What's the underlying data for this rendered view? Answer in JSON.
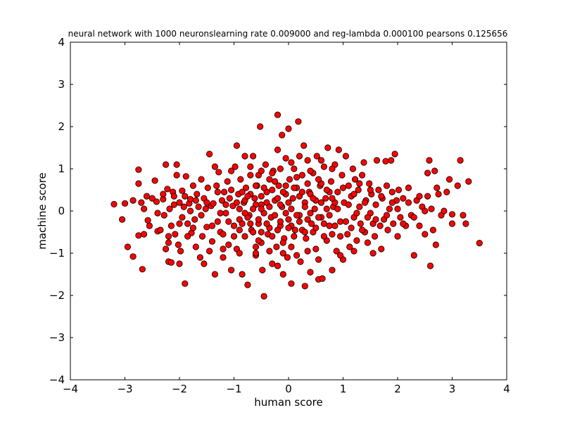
{
  "chart_data": {
    "type": "scatter",
    "title": "neural network with 1000 neuronslearning rate 0.009000 and reg-lambda 0.000100 pearsons 0.125656",
    "xlabel": "human score",
    "ylabel": "machine score",
    "xlim": [
      -4,
      4
    ],
    "ylim": [
      -4,
      4
    ],
    "x_ticks": [
      -4,
      -3,
      -2,
      -1,
      0,
      1,
      2,
      3,
      4
    ],
    "y_ticks": [
      -4,
      -3,
      -2,
      -1,
      0,
      1,
      2,
      3,
      4
    ],
    "x_tick_labels": [
      "−4",
      "−3",
      "−2",
      "−1",
      "0",
      "1",
      "2",
      "3",
      "4"
    ],
    "y_tick_labels": [
      "−4",
      "−3",
      "−2",
      "−1",
      "0",
      "1",
      "2",
      "3",
      "4"
    ],
    "grid": false,
    "marker_color": "#ff0000",
    "marker_edge_color": "#000000",
    "points": [
      [
        -3.2,
        0.16
      ],
      [
        -3.05,
        -0.2
      ],
      [
        -3.0,
        0.18
      ],
      [
        -2.95,
        -0.85
      ],
      [
        -2.85,
        0.25
      ],
      [
        -2.85,
        -1.08
      ],
      [
        -2.75,
        0.98
      ],
      [
        -2.75,
        0.65
      ],
      [
        -2.75,
        -0.58
      ],
      [
        -2.7,
        0.2
      ],
      [
        -2.68,
        -1.38
      ],
      [
        -2.65,
        0.05
      ],
      [
        -2.65,
        -0.55
      ],
      [
        -2.6,
        0.35
      ],
      [
        -2.58,
        -0.22
      ],
      [
        -2.55,
        -0.35
      ],
      [
        -2.5,
        0.3
      ],
      [
        -2.45,
        0.72
      ],
      [
        -2.42,
        0.22
      ],
      [
        -2.4,
        -0.48
      ],
      [
        -2.35,
        -0.45
      ],
      [
        -2.3,
        0.28
      ],
      [
        -2.28,
        -0.1
      ],
      [
        -2.25,
        -0.9
      ],
      [
        -2.25,
        1.1
      ],
      [
        -2.22,
        0.52
      ],
      [
        -2.2,
        -1.2
      ],
      [
        -2.2,
        -0.75
      ],
      [
        -2.18,
        0.05
      ],
      [
        -2.15,
        -0.35
      ],
      [
        -2.15,
        -1.22
      ],
      [
        -2.12,
        0.45
      ],
      [
        -2.1,
        0.35
      ],
      [
        -2.08,
        -0.55
      ],
      [
        -2.05,
        1.1
      ],
      [
        -2.05,
        0.85
      ],
      [
        -2.02,
        -0.8
      ],
      [
        -2.0,
        -1.25
      ],
      [
        -2.0,
        0.2
      ],
      [
        -1.98,
        -0.95
      ],
      [
        -1.95,
        0.48
      ],
      [
        -1.95,
        -0.15
      ],
      [
        -1.92,
        0.1
      ],
      [
        -1.9,
        -1.72
      ],
      [
        -1.88,
        0.82
      ],
      [
        -1.85,
        -0.3
      ],
      [
        -1.82,
        0.18
      ],
      [
        -1.8,
        0.28
      ],
      [
        -1.78,
        -0.52
      ],
      [
        -1.75,
        0.6
      ],
      [
        -1.72,
        -0.2
      ],
      [
        -1.7,
        -0.85
      ],
      [
        -1.68,
        0.4
      ],
      [
        -1.65,
        0.1
      ],
      [
        -1.62,
        -1.1
      ],
      [
        -1.6,
        0.75
      ],
      [
        -1.58,
        -0.6
      ],
      [
        -1.55,
        -1.25
      ],
      [
        -1.55,
        0.3
      ],
      [
        -1.52,
        0.05
      ],
      [
        -1.5,
        -0.38
      ],
      [
        -1.48,
        0.55
      ],
      [
        -1.45,
        -0.95
      ],
      [
        -1.45,
        1.35
      ],
      [
        -1.42,
        0.12
      ],
      [
        -1.4,
        -0.72
      ],
      [
        -1.38,
        0.18
      ],
      [
        -1.35,
        1.05
      ],
      [
        -1.35,
        -1.5
      ],
      [
        -1.32,
        0.6
      ],
      [
        -1.3,
        -0.25
      ],
      [
        -1.28,
        0.92
      ],
      [
        -1.25,
        -0.5
      ],
      [
        -1.22,
        0.25
      ],
      [
        -1.2,
        -1.1
      ],
      [
        -1.18,
        0.45
      ],
      [
        -1.15,
        -0.05
      ],
      [
        -1.12,
        0.7
      ],
      [
        -1.1,
        -0.8
      ],
      [
        -1.08,
        0.3
      ],
      [
        -1.05,
        -1.4
      ],
      [
        -1.05,
        0.95
      ],
      [
        -1.02,
        0.12
      ],
      [
        -1.0,
        -0.35
      ],
      [
        -0.98,
        1.05
      ],
      [
        -0.95,
        1.55
      ],
      [
        -0.95,
        -0.9
      ],
      [
        -0.92,
        0.4
      ],
      [
        -0.9,
        -0.2
      ],
      [
        -0.88,
        0.75
      ],
      [
        -0.85,
        -1.5
      ],
      [
        -0.82,
        0.2
      ],
      [
        -0.8,
        -0.6
      ],
      [
        -0.8,
        1.3
      ],
      [
        -0.78,
        0.55
      ],
      [
        -0.75,
        -1.75
      ],
      [
        -0.72,
        -0.1
      ],
      [
        -0.7,
        0.85
      ],
      [
        -0.68,
        -0.45
      ],
      [
        -0.65,
        1.3
      ],
      [
        -0.62,
        0.3
      ],
      [
        -0.6,
        -1.05
      ],
      [
        -0.58,
        0.6
      ],
      [
        -0.55,
        -0.3
      ],
      [
        -0.52,
        2.0
      ],
      [
        -0.5,
        0.15
      ],
      [
        -0.5,
        -0.75
      ],
      [
        -0.48,
        -1.4
      ],
      [
        -0.45,
        -2.02
      ],
      [
        -0.42,
        1.1
      ],
      [
        -0.4,
        0.45
      ],
      [
        -0.38,
        -0.55
      ],
      [
        -0.35,
        0.75
      ],
      [
        -0.32,
        -0.15
      ],
      [
        -0.3,
        -1.25
      ],
      [
        -0.28,
        0.95
      ],
      [
        -0.25,
        0.25
      ],
      [
        -0.22,
        -0.85
      ],
      [
        -0.2,
        1.45
      ],
      [
        -0.2,
        2.28
      ],
      [
        -0.18,
        0.6
      ],
      [
        -0.15,
        -0.35
      ],
      [
        -0.12,
        1.8
      ],
      [
        -0.12,
        0.1
      ],
      [
        -0.1,
        -1.5
      ],
      [
        -0.08,
        -0.65
      ],
      [
        -0.05,
        1.25
      ],
      [
        -0.05,
        0.4
      ],
      [
        -0.02,
        -1.1
      ],
      [
        0.0,
        1.95
      ],
      [
        0.0,
        -0.2
      ],
      [
        0.02,
        0.75
      ],
      [
        0.05,
        -1.72
      ],
      [
        0.05,
        -0.85
      ],
      [
        0.08,
        0.3
      ],
      [
        0.1,
        1.0
      ],
      [
        0.12,
        -0.45
      ],
      [
        0.15,
        0.55
      ],
      [
        0.18,
        2.12
      ],
      [
        0.2,
        -0.1
      ],
      [
        0.22,
        -1.2
      ],
      [
        0.25,
        0.85
      ],
      [
        0.28,
        1.55
      ],
      [
        0.3,
        -1.78
      ],
      [
        0.3,
        0.2
      ],
      [
        0.32,
        -0.65
      ],
      [
        0.35,
        1.2
      ],
      [
        0.38,
        0.45
      ],
      [
        0.4,
        -1.45
      ],
      [
        0.42,
        -0.3
      ],
      [
        0.45,
        0.9
      ],
      [
        0.48,
        0.05
      ],
      [
        0.5,
        -0.9
      ],
      [
        0.52,
        1.3
      ],
      [
        0.55,
        -1.62
      ],
      [
        0.58,
        0.6
      ],
      [
        0.6,
        -0.15
      ],
      [
        0.62,
        -1.6
      ],
      [
        0.65,
        1.05
      ],
      [
        0.68,
        0.3
      ],
      [
        0.7,
        -0.7
      ],
      [
        0.72,
        1.5
      ],
      [
        0.75,
        -0.35
      ],
      [
        0.78,
        0.7
      ],
      [
        0.8,
        -1.4
      ],
      [
        0.82,
        0.1
      ],
      [
        0.85,
        1.1
      ],
      [
        0.88,
        -0.95
      ],
      [
        0.9,
        0.45
      ],
      [
        0.92,
        1.45
      ],
      [
        0.95,
        -0.25
      ],
      [
        0.98,
        0.85
      ],
      [
        1.0,
        -1.15
      ],
      [
        1.02,
        0.2
      ],
      [
        1.05,
        1.3
      ],
      [
        1.08,
        -0.55
      ],
      [
        1.1,
        0.6
      ],
      [
        1.12,
        -0.85
      ],
      [
        1.15,
        0.35
      ],
      [
        1.18,
        1.0
      ],
      [
        1.2,
        -0.15
      ],
      [
        1.22,
        0.75
      ],
      [
        1.25,
        -0.7
      ],
      [
        1.28,
        0.5
      ],
      [
        1.3,
        0.1
      ],
      [
        1.32,
        -0.3
      ],
      [
        1.35,
        0.85
      ],
      [
        1.38,
        1.15
      ],
      [
        1.4,
        -0.5
      ],
      [
        1.42,
        0.25
      ],
      [
        1.45,
        -0.75
      ],
      [
        1.48,
        0.65
      ],
      [
        1.5,
        -0.05
      ],
      [
        1.52,
        0.4
      ],
      [
        1.55,
        -1.0
      ],
      [
        1.58,
        -0.6
      ],
      [
        1.6,
        0.15
      ],
      [
        1.62,
        1.2
      ],
      [
        1.65,
        0.5
      ],
      [
        1.68,
        -0.35
      ],
      [
        1.7,
        -0.9
      ],
      [
        1.72,
        0.3
      ],
      [
        1.75,
        -0.2
      ],
      [
        1.78,
        1.18
      ],
      [
        1.8,
        0.6
      ],
      [
        1.82,
        -0.45
      ],
      [
        1.85,
        0.05
      ],
      [
        1.88,
        1.2
      ],
      [
        1.9,
        0.45
      ],
      [
        1.92,
        -0.3
      ],
      [
        1.95,
        1.35
      ],
      [
        1.98,
        0.25
      ],
      [
        2.0,
        -0.6
      ],
      [
        2.02,
        0.5
      ],
      [
        2.05,
        -0.15
      ],
      [
        2.1,
        0.3
      ],
      [
        2.15,
        -0.35
      ],
      [
        2.2,
        0.55
      ],
      [
        2.25,
        -0.1
      ],
      [
        2.3,
        -1.05
      ],
      [
        2.35,
        0.25
      ],
      [
        2.4,
        -0.35
      ],
      [
        2.45,
        0.1
      ],
      [
        2.5,
        -0.55
      ],
      [
        2.55,
        0.9
      ],
      [
        2.55,
        0.35
      ],
      [
        2.58,
        1.2
      ],
      [
        2.6,
        -1.3
      ],
      [
        2.62,
        0.05
      ],
      [
        2.65,
        -0.45
      ],
      [
        2.68,
        0.95
      ],
      [
        2.7,
        -0.8
      ],
      [
        2.72,
        0.55
      ],
      [
        2.75,
        0.4
      ],
      [
        2.8,
        -0.1
      ],
      [
        2.85,
        0.0
      ],
      [
        2.9,
        0.45
      ],
      [
        2.95,
        0.75
      ],
      [
        3.0,
        -0.08
      ],
      [
        3.0,
        -0.3
      ],
      [
        3.1,
        0.6
      ],
      [
        3.15,
        1.2
      ],
      [
        3.2,
        -0.1
      ],
      [
        3.25,
        -0.3
      ],
      [
        3.3,
        0.7
      ],
      [
        3.5,
        -0.76
      ],
      [
        -0.6,
        0.15
      ],
      [
        -0.55,
        -0.2
      ],
      [
        -0.5,
        0.35
      ],
      [
        -0.45,
        -0.05
      ],
      [
        -0.4,
        0.2
      ],
      [
        -0.35,
        -0.4
      ],
      [
        -0.3,
        0.5
      ],
      [
        -0.25,
        -0.1
      ],
      [
        -0.2,
        0.3
      ],
      [
        -0.15,
        -0.25
      ],
      [
        -0.1,
        0.45
      ],
      [
        -0.05,
        -0.05
      ],
      [
        0.0,
        0.2
      ],
      [
        0.05,
        -0.35
      ],
      [
        0.1,
        0.55
      ],
      [
        0.15,
        -0.1
      ],
      [
        0.2,
        0.35
      ],
      [
        0.25,
        -0.45
      ],
      [
        0.3,
        0.1
      ],
      [
        0.35,
        -0.2
      ],
      [
        0.4,
        0.4
      ],
      [
        0.45,
        -0.5
      ],
      [
        0.5,
        0.25
      ],
      [
        0.55,
        -0.15
      ],
      [
        0.6,
        0.65
      ],
      [
        0.65,
        -0.3
      ],
      [
        0.7,
        0.05
      ],
      [
        0.75,
        0.45
      ],
      [
        0.8,
        -0.55
      ],
      [
        0.85,
        0.2
      ],
      [
        -0.9,
        0.05
      ],
      [
        -0.85,
        -0.3
      ],
      [
        -0.8,
        0.25
      ],
      [
        -0.75,
        -0.15
      ],
      [
        -0.7,
        0.4
      ],
      [
        -0.65,
        -0.5
      ],
      [
        -0.6,
        0.6
      ],
      [
        -0.55,
        -0.7
      ],
      [
        -0.5,
        0.05
      ],
      [
        -0.45,
        0.55
      ],
      [
        -0.4,
        -0.3
      ],
      [
        -0.35,
        0.1
      ],
      [
        -0.3,
        -0.6
      ],
      [
        -0.25,
        0.7
      ],
      [
        -0.2,
        -0.45
      ],
      [
        -0.15,
        0.15
      ],
      [
        -0.1,
        -0.75
      ],
      [
        -0.05,
        0.6
      ],
      [
        0.0,
        -0.4
      ],
      [
        0.05,
        0.05
      ],
      [
        0.1,
        -0.6
      ],
      [
        0.15,
        0.8
      ],
      [
        0.2,
        -0.25
      ],
      [
        0.25,
        0.45
      ],
      [
        0.3,
        -0.5
      ],
      [
        0.35,
        0.65
      ],
      [
        0.4,
        -0.05
      ],
      [
        0.45,
        0.3
      ],
      [
        0.5,
        -0.4
      ],
      [
        0.55,
        0.75
      ],
      [
        -1.6,
        -0.1
      ],
      [
        -1.5,
        0.2
      ],
      [
        -1.4,
        -0.35
      ],
      [
        -1.3,
        0.45
      ],
      [
        -1.25,
        -0.05
      ],
      [
        -1.2,
        -0.55
      ],
      [
        -1.15,
        0.15
      ],
      [
        -1.1,
        -0.25
      ],
      [
        -1.05,
        0.5
      ],
      [
        -1.0,
        -0.6
      ],
      [
        -0.95,
        0.2
      ],
      [
        -0.9,
        -0.45
      ],
      [
        -0.85,
        0.45
      ],
      [
        -0.8,
        -0.05
      ],
      [
        -0.75,
        0.35
      ],
      [
        -0.7,
        -0.3
      ],
      [
        -0.65,
        0.05
      ],
      [
        -0.6,
        -0.85
      ],
      [
        -0.55,
        0.85
      ],
      [
        -0.5,
        -0.5
      ],
      [
        0.6,
        0.2
      ],
      [
        0.65,
        -0.6
      ],
      [
        0.7,
        0.5
      ],
      [
        0.75,
        -0.1
      ],
      [
        0.8,
        0.3
      ],
      [
        0.85,
        -0.35
      ],
      [
        0.9,
        0.05
      ],
      [
        0.95,
        -0.6
      ],
      [
        1.0,
        0.55
      ],
      [
        1.05,
        -0.25
      ],
      [
        1.1,
        0.15
      ],
      [
        1.15,
        -0.4
      ],
      [
        1.2,
        0.4
      ],
      [
        1.25,
        -0.05
      ],
      [
        1.3,
        0.65
      ],
      [
        1.35,
        -0.45
      ],
      [
        1.4,
        0.2
      ],
      [
        1.45,
        -0.15
      ],
      [
        1.5,
        0.5
      ],
      [
        1.55,
        -0.3
      ],
      [
        -2.4,
        -0.05
      ],
      [
        -2.3,
        0.4
      ],
      [
        -2.2,
        -0.6
      ],
      [
        -2.1,
        0.15
      ],
      [
        -2.0,
        -0.3
      ],
      [
        -1.9,
        0.35
      ],
      [
        -1.85,
        -0.6
      ],
      [
        -1.8,
        0.0
      ],
      [
        -1.75,
        -0.4
      ],
      [
        -1.7,
        0.25
      ],
      [
        1.6,
        -0.2
      ],
      [
        1.7,
        0.35
      ],
      [
        1.8,
        -0.1
      ],
      [
        1.9,
        0.2
      ],
      [
        2.0,
        0.05
      ],
      [
        2.1,
        -0.3
      ],
      [
        2.2,
        0.2
      ],
      [
        2.3,
        -0.15
      ],
      [
        2.4,
        0.35
      ],
      [
        2.5,
        0.0
      ],
      [
        -0.3,
        0.9
      ],
      [
        -0.15,
        1.0
      ],
      [
        0.05,
        1.15
      ],
      [
        0.2,
        1.3
      ],
      [
        0.4,
        0.95
      ],
      [
        -0.5,
        0.95
      ],
      [
        -0.7,
        1.05
      ],
      [
        0.6,
        1.2
      ],
      [
        0.8,
        1.0
      ],
      [
        -0.1,
        -1.0
      ],
      [
        -0.35,
        -0.95
      ],
      [
        0.15,
        -1.05
      ],
      [
        0.35,
        -0.95
      ],
      [
        -0.6,
        -1.0
      ],
      [
        0.55,
        -1.15
      ],
      [
        -0.9,
        -1.0
      ],
      [
        0.95,
        -1.05
      ],
      [
        -1.2,
        -0.9
      ],
      [
        1.2,
        -0.95
      ],
      [
        -0.2,
        -1.3
      ]
    ]
  }
}
